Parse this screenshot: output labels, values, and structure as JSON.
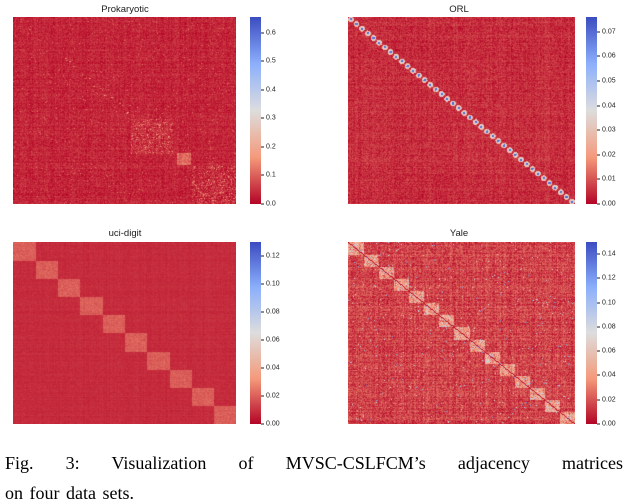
{
  "figure": {
    "caption_line1": "Fig. 3: Visualization of MVSC-CSLFCM’s adjacency matrices",
    "caption_line2": "on four data sets."
  },
  "colors": {
    "colormap_low": "#b40426",
    "colormap_mid": "#dddddd",
    "colormap_high": "#3b4cc0",
    "background": "#ffffff",
    "tick_text": "#1c1c1c"
  },
  "chart_data": [
    {
      "type": "heatmap",
      "title": "Prokaryotic",
      "colormap": "coolwarm_r",
      "vmin": 0.0,
      "vmax": 0.655,
      "colorbar_ticks": [
        0.0,
        0.1,
        0.2,
        0.3,
        0.4,
        0.5,
        0.6
      ],
      "tick_labels": [
        "0.0",
        "0.1",
        "0.2",
        "0.3",
        "0.4",
        "0.5",
        "0.6"
      ],
      "legend_position": "right",
      "structure": "mostly near-zero red matrix with faint textured cluster blocks in the lower-right diagonal region",
      "render": {
        "seed": 11,
        "base": 0.055,
        "noise": 0.04,
        "rowcol": 0.025,
        "speckles": {
          "count": 900,
          "min": 0.08,
          "max": 0.2
        },
        "blocks": [
          {
            "x0": 0.525,
            "y0": 0.545,
            "x1": 0.715,
            "y1": 0.73,
            "add": 0.02,
            "noise": 0.05,
            "spc": 0.1,
            "spv": 0.18
          },
          {
            "x0": 0.732,
            "y0": 0.725,
            "x1": 0.798,
            "y1": 0.79,
            "add": 0.125,
            "noise": 0.035
          },
          {
            "x0": 0.8,
            "y0": 0.795,
            "x1": 1.0,
            "y1": 1.0,
            "add": 0.01,
            "noise": 0.05,
            "spc": 0.12,
            "spv": 0.2
          }
        ],
        "diagdots": {
          "count": 14,
          "from": 0.18,
          "to": 0.52,
          "val": 0.22
        }
      }
    },
    {
      "type": "heatmap",
      "title": "ORL",
      "colormap": "coolwarm_r",
      "vmin": 0.0,
      "vmax": 0.076,
      "colorbar_ticks": [
        0.0,
        0.01,
        0.02,
        0.03,
        0.04,
        0.05,
        0.06,
        0.07
      ],
      "tick_labels": [
        "0.00",
        "0.01",
        "0.02",
        "0.03",
        "0.04",
        "0.05",
        "0.06",
        "0.07"
      ],
      "legend_position": "right",
      "n_diagonal_clusters": 40,
      "structure": "red noisy matrix with 40 small bright blue-centered cluster dots along the main diagonal",
      "render": {
        "seed": 22,
        "base": 0.07,
        "noise": 0.05,
        "rowcol": 0.03,
        "dots": {
          "count": 40,
          "ring": 0.5,
          "center": 0.92
        }
      }
    },
    {
      "type": "heatmap",
      "title": "uci-digit",
      "colormap": "coolwarm_r",
      "vmin": 0.0,
      "vmax": 0.13,
      "colorbar_ticks": [
        0.0,
        0.02,
        0.04,
        0.06,
        0.08,
        0.1,
        0.12
      ],
      "tick_labels": [
        "0.00",
        "0.02",
        "0.04",
        "0.06",
        "0.08",
        "0.10",
        "0.12"
      ],
      "legend_position": "right",
      "n_diagonal_clusters": 10,
      "structure": "smooth red matrix with 10 slightly lighter square cluster blocks along the main diagonal",
      "render": {
        "seed": 33,
        "base": 0.065,
        "noise": 0.015,
        "rowcol": 0.012,
        "diagBlocks": {
          "count": 10,
          "add": 0.085,
          "noise": 0.022
        }
      }
    },
    {
      "type": "heatmap",
      "title": "Yale",
      "colormap": "coolwarm_r",
      "vmin": 0.0,
      "vmax": 0.15,
      "colorbar_ticks": [
        0.0,
        0.02,
        0.04,
        0.06,
        0.08,
        0.1,
        0.12,
        0.14
      ],
      "tick_labels": [
        "0.00",
        "0.02",
        "0.04",
        "0.06",
        "0.08",
        "0.10",
        "0.12",
        "0.14"
      ],
      "legend_position": "right",
      "n_diagonal_clusters": 15,
      "structure": "heavily textured red matrix with 15 light cluster blocks and a thin dark line along the main diagonal, scattered bright speckles",
      "render": {
        "seed": 44,
        "base": 0.105,
        "noise": 0.07,
        "rowcol": 0.05,
        "diagBlocks": {
          "count": 15,
          "add": 0.16,
          "noise": 0.11,
          "spc": 0.1,
          "spv": 0.35
        },
        "diagLine": 0.0,
        "speckles": {
          "count": 420,
          "min": 0.35,
          "max": 0.85
        }
      }
    }
  ]
}
